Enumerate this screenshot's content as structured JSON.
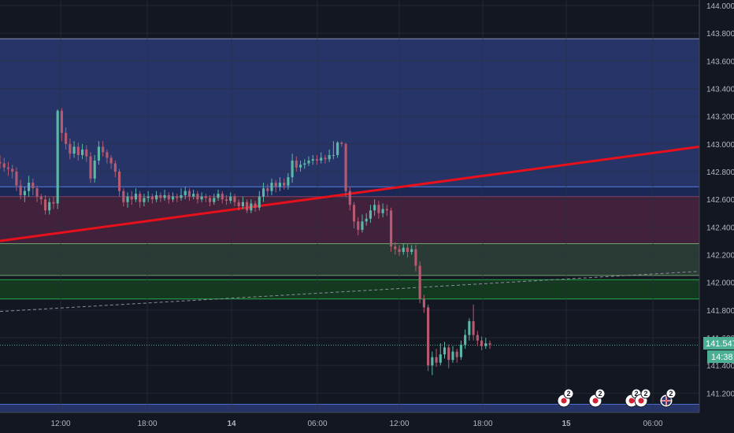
{
  "chart_data": {
    "type": "candlestick",
    "ylim": [
      141.06,
      144.04
    ],
    "grid": true,
    "y_ticks": [
      "144.000",
      "143.800",
      "143.600",
      "143.400",
      "143.200",
      "143.000",
      "142.800",
      "142.600",
      "142.400",
      "142.200",
      "142.000",
      "141.800",
      "141.600",
      "141.400",
      "141.200"
    ],
    "x_ticks": [
      "12:00",
      "18:00",
      "14",
      "06:00",
      "12:00",
      "18:00",
      "15",
      "06:00"
    ],
    "x_ticks_bold": [
      false,
      false,
      true,
      false,
      false,
      false,
      true,
      false
    ],
    "current_price": "141.547",
    "countdown": "14:38",
    "colors": {
      "background": "#131722",
      "grid": "#2a3240",
      "up": "#5bb8a6",
      "down": "#b65a72",
      "trendline": "#e8101a",
      "price_line": "#4caf94",
      "dashed_line": "#8a8f9a"
    },
    "zones": [
      {
        "from": 142.69,
        "to": 143.76,
        "color": "#2b3a73",
        "border": "#8590b8"
      },
      {
        "from": 142.62,
        "to": 142.69,
        "color": "#1d2a5e",
        "border": "#4c6fd4"
      },
      {
        "from": 142.28,
        "to": 142.62,
        "color": "#4a2340",
        "border": "#7a3a55"
      },
      {
        "from": 142.05,
        "to": 142.28,
        "color": "#2f4238",
        "border": "#73a06b"
      },
      {
        "from": 141.88,
        "to": 142.02,
        "color": "#14401f",
        "border": "#2ba84a"
      },
      {
        "from": 141.06,
        "to": 141.12,
        "color": "#2b3a73",
        "border": "#4c6fd4"
      }
    ],
    "trendline": [
      142.3,
      142.98
    ],
    "dashed_line": [
      141.79,
      142.08
    ],
    "candles": [
      [
        142.87,
        142.86,
        142.92,
        142.82
      ],
      [
        142.86,
        142.83,
        142.9,
        142.8
      ],
      [
        142.83,
        142.82,
        142.87,
        142.77
      ],
      [
        142.82,
        142.8,
        142.85,
        142.75
      ],
      [
        142.8,
        142.7,
        142.83,
        142.66
      ],
      [
        142.7,
        142.63,
        142.74,
        142.6
      ],
      [
        142.63,
        142.66,
        142.69,
        142.58
      ],
      [
        142.66,
        142.72,
        142.77,
        142.62
      ],
      [
        142.72,
        142.68,
        142.75,
        142.63
      ],
      [
        142.68,
        142.62,
        142.7,
        142.58
      ],
      [
        142.62,
        142.6,
        142.64,
        142.56
      ],
      [
        142.6,
        142.52,
        142.63,
        142.49
      ],
      [
        142.52,
        142.58,
        142.61,
        142.49
      ],
      [
        142.58,
        142.57,
        142.62,
        142.53
      ],
      [
        142.57,
        143.24,
        143.25,
        142.53
      ],
      [
        143.24,
        143.08,
        143.26,
        143.02
      ],
      [
        143.08,
        143.0,
        143.12,
        142.96
      ],
      [
        143.0,
        142.93,
        143.04,
        142.89
      ],
      [
        142.93,
        142.98,
        143.02,
        142.9
      ],
      [
        142.98,
        142.92,
        143.01,
        142.88
      ],
      [
        142.92,
        142.96,
        143.0,
        142.89
      ],
      [
        142.96,
        142.91,
        142.99,
        142.87
      ],
      [
        142.91,
        142.75,
        142.94,
        142.72
      ],
      [
        142.75,
        142.88,
        142.92,
        142.72
      ],
      [
        142.88,
        142.98,
        143.02,
        142.85
      ],
      [
        142.98,
        142.94,
        143.02,
        142.91
      ],
      [
        142.94,
        142.9,
        142.96,
        142.86
      ],
      [
        142.9,
        142.86,
        142.92,
        142.82
      ],
      [
        142.86,
        142.8,
        142.88,
        142.76
      ],
      [
        142.8,
        142.66,
        142.82,
        142.62
      ],
      [
        142.66,
        142.58,
        142.68,
        142.55
      ],
      [
        142.58,
        142.62,
        142.65,
        142.54
      ],
      [
        142.62,
        142.6,
        142.66,
        142.56
      ],
      [
        142.6,
        142.64,
        142.68,
        142.58
      ],
      [
        142.64,
        142.58,
        142.66,
        142.54
      ],
      [
        142.58,
        142.61,
        142.64,
        142.55
      ],
      [
        142.61,
        142.62,
        142.66,
        142.58
      ],
      [
        142.62,
        142.6,
        142.64,
        142.57
      ],
      [
        142.6,
        142.63,
        142.66,
        142.58
      ],
      [
        142.63,
        142.61,
        142.65,
        142.58
      ],
      [
        142.61,
        142.63,
        142.67,
        142.59
      ],
      [
        142.63,
        142.6,
        142.65,
        142.57
      ],
      [
        142.6,
        142.62,
        142.65,
        142.58
      ],
      [
        142.62,
        142.61,
        142.64,
        142.58
      ],
      [
        142.61,
        142.63,
        142.68,
        142.59
      ],
      [
        142.63,
        142.66,
        142.69,
        142.6
      ],
      [
        142.66,
        142.62,
        142.68,
        142.59
      ],
      [
        142.62,
        142.64,
        142.67,
        142.6
      ],
      [
        142.64,
        142.6,
        142.66,
        142.57
      ],
      [
        142.6,
        142.62,
        142.65,
        142.58
      ],
      [
        142.62,
        142.61,
        142.64,
        142.58
      ],
      [
        142.61,
        142.58,
        142.63,
        142.55
      ],
      [
        142.58,
        142.61,
        142.64,
        142.56
      ],
      [
        142.61,
        142.64,
        142.67,
        142.59
      ],
      [
        142.64,
        142.6,
        142.66,
        142.57
      ],
      [
        142.6,
        142.59,
        142.63,
        142.56
      ],
      [
        142.59,
        142.62,
        142.65,
        142.57
      ],
      [
        142.62,
        142.58,
        142.64,
        142.55
      ],
      [
        142.58,
        142.55,
        142.6,
        142.52
      ],
      [
        142.55,
        142.58,
        142.62,
        142.53
      ],
      [
        142.58,
        142.52,
        142.6,
        142.5
      ],
      [
        142.52,
        142.57,
        142.6,
        142.5
      ],
      [
        142.57,
        142.54,
        142.59,
        142.51
      ],
      [
        142.54,
        142.62,
        142.66,
        142.52
      ],
      [
        142.62,
        142.68,
        142.72,
        142.58
      ],
      [
        142.68,
        142.66,
        142.71,
        142.62
      ],
      [
        142.66,
        142.72,
        142.75,
        142.63
      ],
      [
        142.72,
        142.69,
        142.74,
        142.65
      ],
      [
        142.69,
        142.72,
        142.76,
        142.66
      ],
      [
        142.72,
        142.7,
        142.75,
        142.67
      ],
      [
        142.7,
        142.76,
        142.79,
        142.67
      ],
      [
        142.76,
        142.88,
        142.93,
        142.72
      ],
      [
        142.88,
        142.83,
        142.91,
        142.8
      ],
      [
        142.83,
        142.85,
        142.88,
        142.8
      ],
      [
        142.85,
        142.86,
        142.89,
        142.82
      ],
      [
        142.86,
        142.88,
        142.91,
        142.84
      ],
      [
        142.88,
        142.89,
        142.92,
        142.85
      ],
      [
        142.89,
        142.88,
        142.92,
        142.85
      ],
      [
        142.88,
        142.9,
        142.94,
        142.86
      ],
      [
        142.9,
        142.89,
        142.92,
        142.86
      ],
      [
        142.89,
        142.92,
        142.96,
        142.87
      ],
      [
        142.92,
        142.92,
        143.02,
        142.89
      ],
      [
        142.92,
        143.01,
        143.02,
        142.9
      ],
      [
        143.01,
        143.0,
        143.02,
        142.98
      ],
      [
        143.0,
        142.66,
        143.01,
        142.62
      ],
      [
        142.66,
        142.56,
        142.69,
        142.52
      ],
      [
        142.56,
        142.44,
        142.58,
        142.39
      ],
      [
        142.44,
        142.38,
        142.47,
        142.34
      ],
      [
        142.38,
        142.44,
        142.49,
        142.36
      ],
      [
        142.44,
        142.46,
        142.5,
        142.41
      ],
      [
        142.46,
        142.52,
        142.56,
        142.43
      ],
      [
        142.52,
        142.56,
        142.6,
        142.48
      ],
      [
        142.56,
        142.5,
        142.59,
        142.46
      ],
      [
        142.5,
        142.53,
        142.57,
        142.47
      ],
      [
        142.53,
        142.52,
        142.56,
        142.48
      ],
      [
        142.52,
        142.26,
        142.54,
        142.22
      ],
      [
        142.26,
        142.24,
        142.29,
        142.2
      ],
      [
        142.24,
        142.22,
        142.27,
        142.19
      ],
      [
        142.22,
        142.25,
        142.28,
        142.2
      ],
      [
        142.25,
        142.22,
        142.28,
        142.18
      ],
      [
        142.22,
        142.24,
        142.27,
        142.2
      ],
      [
        142.24,
        142.12,
        142.27,
        142.08
      ],
      [
        142.12,
        141.88,
        142.15,
        141.85
      ],
      [
        141.88,
        141.82,
        141.91,
        141.78
      ],
      [
        141.82,
        141.4,
        141.84,
        141.36
      ],
      [
        141.4,
        141.46,
        141.5,
        141.33
      ],
      [
        141.46,
        141.42,
        141.52,
        141.39
      ],
      [
        141.42,
        141.48,
        141.56,
        141.4
      ],
      [
        141.48,
        141.53,
        141.57,
        141.45
      ],
      [
        141.53,
        141.44,
        141.55,
        141.38
      ],
      [
        141.44,
        141.5,
        141.54,
        141.42
      ],
      [
        141.5,
        141.46,
        141.52,
        141.42
      ],
      [
        141.46,
        141.55,
        141.58,
        141.44
      ],
      [
        141.55,
        141.62,
        141.66,
        141.52
      ],
      [
        141.62,
        141.72,
        141.74,
        141.58
      ],
      [
        141.72,
        141.62,
        141.84,
        141.58
      ],
      [
        141.62,
        141.58,
        141.65,
        141.54
      ],
      [
        141.58,
        141.54,
        141.61,
        141.51
      ],
      [
        141.54,
        141.56,
        141.6,
        141.52
      ],
      [
        141.56,
        141.55,
        141.58,
        141.52
      ]
    ],
    "events": [
      {
        "count": "2",
        "kind": "flag"
      },
      {
        "count": "2",
        "kind": "flag"
      },
      {
        "count": "2",
        "kind": "flag"
      },
      {
        "count": "2",
        "kind": "flag"
      },
      {
        "count": "2",
        "kind": "union-jack"
      }
    ]
  }
}
